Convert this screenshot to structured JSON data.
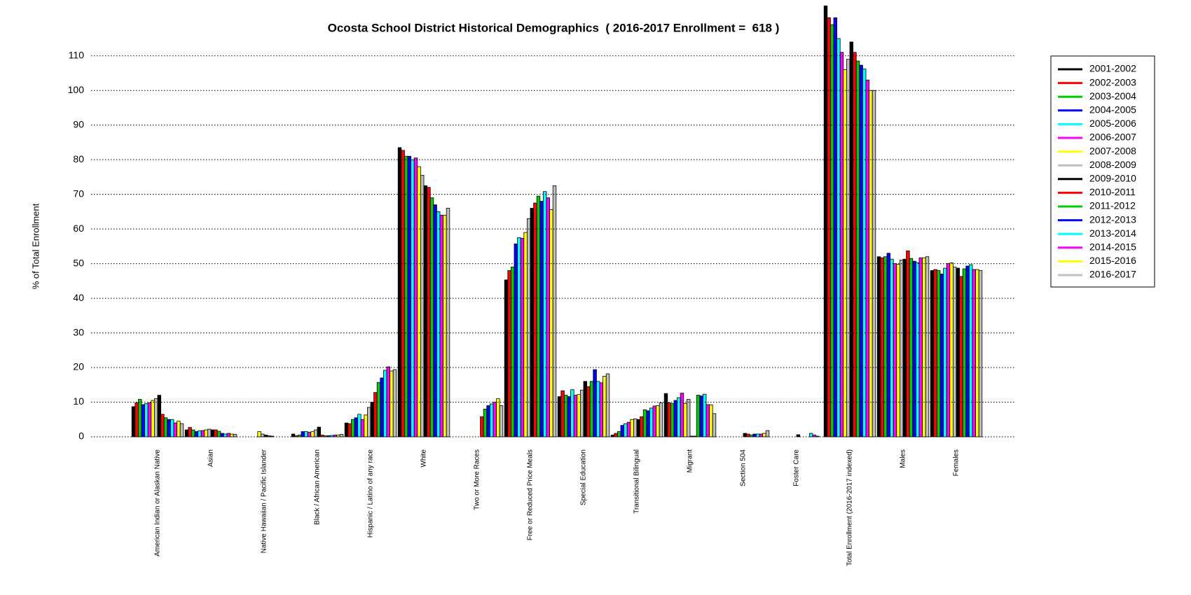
{
  "chart_data": {
    "type": "bar",
    "title": "Ocosta School District Historical Demographics  ( 2016-2017 Enrollment =  618 )",
    "y_label": "% of Total Enrollment",
    "categories": [
      "American Indian or Alaskan Native",
      "Asian",
      "Native Hawaiian / Pacific Islander",
      "Black / African American",
      "Hispanic / Latino of any race",
      "White",
      "Two or More Races",
      "Free or Reduced Price Meals",
      "Special Education",
      "Transitional Bilingual",
      "Migrant",
      "Section 504",
      "Foster Care",
      "Total Enrollment (2016-2017 indexed)",
      "Males",
      "Females"
    ],
    "series": [
      {
        "name": "2001-2002",
        "color": "#000000",
        "values": [
          8.7,
          2,
          0,
          0.8,
          4,
          83.5,
          0,
          45.3,
          11.6,
          0.5,
          12.5,
          0,
          0,
          124.5,
          52,
          48
        ]
      },
      {
        "name": "2002-2003",
        "color": "#ff0000",
        "values": [
          9.8,
          2.7,
          0,
          0.3,
          3.8,
          82.7,
          0,
          48,
          13.3,
          1,
          9.8,
          0,
          0,
          121,
          51.7,
          48.3
        ]
      },
      {
        "name": "2003-2004",
        "color": "#00cc00",
        "values": [
          10.8,
          2,
          0,
          0.5,
          5,
          81,
          0,
          49,
          12,
          1.5,
          9.6,
          0,
          0,
          119,
          52,
          48
        ]
      },
      {
        "name": "2004-2005",
        "color": "#0000ff",
        "values": [
          9.3,
          1.5,
          0,
          1.5,
          5.5,
          81,
          0,
          55.7,
          11.6,
          3.3,
          10.5,
          0,
          0,
          121,
          53,
          47
        ]
      },
      {
        "name": "2005-2006",
        "color": "#00ffff",
        "values": [
          9.6,
          1.7,
          0,
          1.5,
          6.5,
          80,
          0,
          57.5,
          13.6,
          3.8,
          11.3,
          0,
          0,
          115,
          51.3,
          48.7
        ]
      },
      {
        "name": "2006-2007",
        "color": "#ff00ff",
        "values": [
          9.8,
          1.8,
          0,
          1.3,
          5,
          80.5,
          0,
          57.3,
          12,
          4.2,
          12.6,
          0,
          0,
          111,
          50,
          50
        ]
      },
      {
        "name": "2007-2008",
        "color": "#ffff00",
        "values": [
          10.5,
          2,
          1.5,
          1.5,
          6.3,
          78,
          0,
          59,
          12.2,
          5,
          9.6,
          0,
          0,
          106,
          49.8,
          50.2
        ]
      },
      {
        "name": "2008-2009",
        "color": "#bebebe",
        "values": [
          11,
          2.2,
          0.8,
          2,
          8.5,
          75.5,
          0,
          63,
          13.5,
          5.2,
          10.8,
          0,
          0,
          109,
          51,
          49
        ]
      },
      {
        "name": "2009-2010",
        "color": "#000000",
        "values": [
          12,
          2,
          0.5,
          2.8,
          10,
          72.5,
          0,
          66,
          16,
          5,
          0.2,
          1,
          0.6,
          114,
          51.3,
          48.7
        ]
      },
      {
        "name": "2010-2011",
        "color": "#ff0000",
        "values": [
          6.5,
          2,
          0.3,
          0.5,
          12.8,
          72,
          5.8,
          67.5,
          14.5,
          5.8,
          0.2,
          0.8,
          0,
          111,
          53.7,
          46.3
        ]
      },
      {
        "name": "2011-2012",
        "color": "#00cc00",
        "values": [
          5.5,
          1.6,
          0.2,
          0.3,
          15.7,
          69,
          8,
          69.5,
          16,
          7.8,
          12,
          0.5,
          0,
          108.5,
          51.5,
          48.5
        ]
      },
      {
        "name": "2012-2013",
        "color": "#0000ff",
        "values": [
          5,
          1,
          0,
          0.3,
          17,
          67,
          9,
          68,
          19.4,
          7.5,
          11.8,
          0.8,
          0,
          107.3,
          50.7,
          49.3
        ]
      },
      {
        "name": "2013-2014",
        "color": "#00ffff",
        "values": [
          5,
          0.8,
          0,
          0.4,
          19.2,
          65,
          9.5,
          70.8,
          16,
          8.3,
          12.3,
          0.8,
          1,
          106.2,
          50.3,
          49.7
        ]
      },
      {
        "name": "2014-2015",
        "color": "#ff00ff",
        "values": [
          4,
          1,
          0,
          0.5,
          20.2,
          64,
          10,
          69,
          15.6,
          8.9,
          9.3,
          0.8,
          0.5,
          103,
          51.7,
          48.3
        ]
      },
      {
        "name": "2015-2016",
        "color": "#ffff00",
        "values": [
          4.5,
          0.8,
          0,
          0.5,
          19,
          64,
          11,
          65.6,
          17.5,
          9,
          9.2,
          1,
          0.2,
          100,
          51.7,
          48.3
        ]
      },
      {
        "name": "2016-2017",
        "color": "#bebebe",
        "values": [
          3.8,
          0.7,
          0,
          0.7,
          19.4,
          66,
          9,
          72.5,
          18.2,
          9.8,
          6.7,
          1.8,
          0,
          100,
          52,
          48
        ]
      }
    ],
    "ylim": [
      0,
      124.5
    ],
    "yticks": [
      0,
      10,
      20,
      30,
      40,
      50,
      60,
      70,
      80,
      90,
      100,
      110
    ],
    "grid": true,
    "legend": "right"
  }
}
